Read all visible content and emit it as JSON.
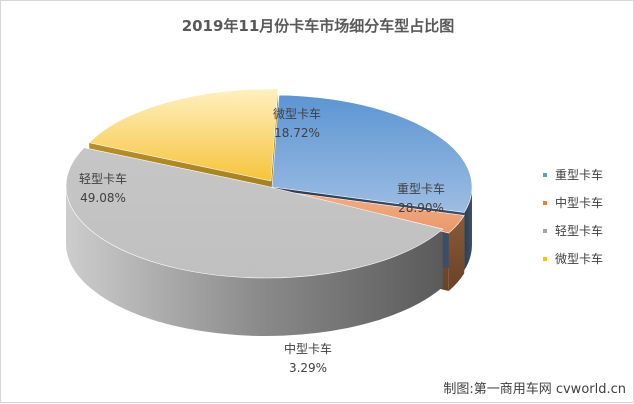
{
  "chart_data": {
    "type": "pie",
    "title": "2019年11月份卡车市场细分车型占比图",
    "slices": [
      {
        "name": "重型卡车",
        "value": 28.9,
        "label": "28.90%",
        "color": "#5B9BD5"
      },
      {
        "name": "中型卡车",
        "value": 3.29,
        "label": "3.29%",
        "color": "#ED7D31"
      },
      {
        "name": "轻型卡车",
        "value": 49.08,
        "label": "49.08%",
        "color": "#A5A5A5"
      },
      {
        "name": "微型卡车",
        "value": 18.72,
        "label": "18.72%",
        "color": "#FFC000"
      }
    ],
    "legend": {
      "position": "right",
      "items": [
        "重型卡车",
        "中型卡车",
        "轻型卡车",
        "微型卡车"
      ]
    },
    "style": "3d-pie"
  },
  "watermark": "制图:第一商用车网 cvworld.cn"
}
